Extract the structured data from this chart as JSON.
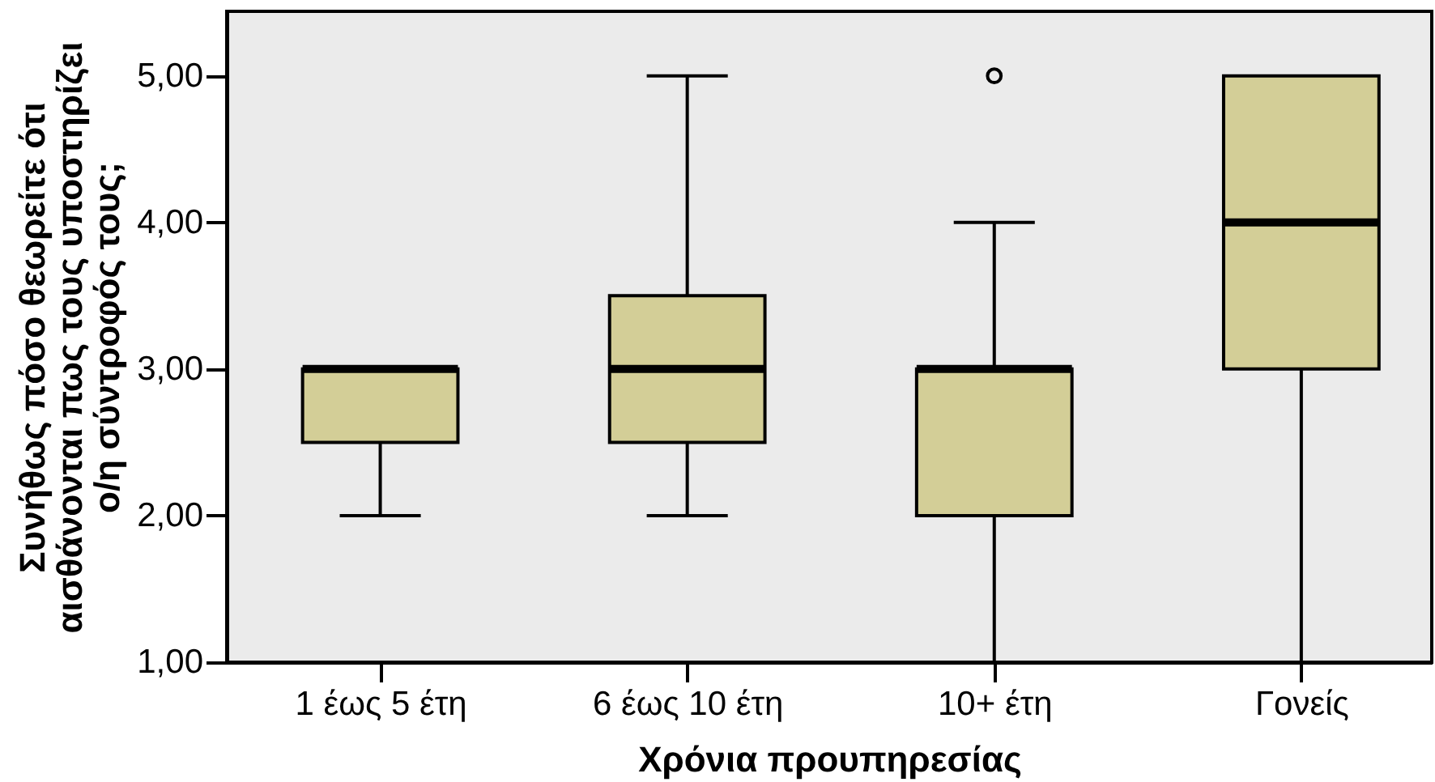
{
  "chart_data": {
    "type": "box",
    "xlabel": "Χρόνια προυπηρεσίας",
    "ylabel": "Συνήθως πόσο θεωρείτε ότι αισθάνονται πως τους υποστηρίζει ο/η σύντροφός τους;",
    "categories": [
      "1 έως 5 έτη",
      "6 έως 10 έτη",
      "10+ έτη",
      "Γονείς"
    ],
    "series": [
      {
        "color": "#d3ce97",
        "boxes": [
          {
            "low": 2,
            "q1": 2.5,
            "median": 3,
            "q3": 3,
            "high": 3
          },
          {
            "low": 2,
            "q1": 2.5,
            "median": 3,
            "q3": 3.5,
            "high": 5
          },
          {
            "low": 1,
            "q1": 2,
            "median": 3,
            "q3": 3,
            "high": 4,
            "outliers": [
              5
            ]
          },
          {
            "low": 1,
            "q1": 3,
            "median": 4,
            "q3": 5,
            "high": 5
          }
        ]
      }
    ],
    "ylim": [
      1,
      5.44
    ],
    "yticks": [
      {
        "value": 1,
        "label": "1,00"
      },
      {
        "value": 2,
        "label": "2,00"
      },
      {
        "value": 3,
        "label": "3,00"
      },
      {
        "value": 4,
        "label": "4,00"
      },
      {
        "value": 5,
        "label": "5,00"
      }
    ]
  }
}
